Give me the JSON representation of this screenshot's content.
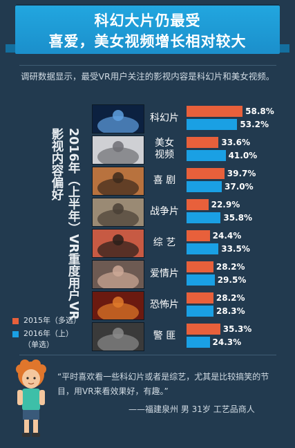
{
  "header": {
    "title_line1": "科幻大片仍最受",
    "title_line2": "喜爱，美女视频增长相对较大"
  },
  "intro": "调研数据显示，最受VR用户关注的影视内容是科幻片和美女视频。",
  "colors": {
    "orange": "#e8603b",
    "blue": "#1aa0e4",
    "background": "#223a4f",
    "title": "#1d9ad6"
  },
  "chart_data": {
    "type": "bar",
    "orientation": "horizontal",
    "title": "2016年（上半年）VR重度用户VR影视内容偏好",
    "categories": [
      "科幻片",
      "美女视频",
      "喜剧",
      "战争片",
      "综艺",
      "爱情片",
      "恐怖片",
      "警匪"
    ],
    "category_labels": [
      "科幻片",
      "美女\n视频",
      "喜 剧",
      "战争片",
      "综 艺",
      "爱情片",
      "恐怖片",
      "警 匪"
    ],
    "series": [
      {
        "name": "2015年（多选）",
        "values": [
          58.8,
          33.6,
          39.7,
          22.9,
          24.4,
          28.2,
          28.2,
          35.3
        ]
      },
      {
        "name": "2016年（上）（单选）",
        "values": [
          53.2,
          41.0,
          37.0,
          35.8,
          33.5,
          29.5,
          28.3,
          24.3
        ]
      }
    ],
    "value_labels": [
      [
        "58.8%",
        "33.6%",
        "39.7%",
        "22.9%",
        "24.4%",
        "28.2%",
        "28.2%",
        "35.3%"
      ],
      [
        "53.2%",
        "41.0%",
        "37.0%",
        "35.8%",
        "33.5%",
        "29.5%",
        "28.3%",
        "24.3%"
      ]
    ],
    "unit": "%",
    "legend": [
      {
        "label": "2015年（多选）",
        "color": "#e8603b"
      },
      {
        "label": "2016年（上）\n（单选）",
        "color": "#1aa0e4"
      }
    ],
    "legend_position": "bottom-left"
  },
  "testimonial": {
    "quote": "“平时喜欢看一些科幻片或者是综艺，尤其是比较搞笑的节目，用VR来看效果好，有趣。”",
    "attribution": "——福建泉州 男 31岁    工艺品商人",
    "avatar_icon": "cartoon-boy-avatar-icon"
  },
  "thumbnails": [
    {
      "icon": "scifi-robot-thumbnail-icon"
    },
    {
      "icon": "woman-portrait-thumbnail-icon"
    },
    {
      "icon": "comedy-duo-thumbnail-icon"
    },
    {
      "icon": "war-scene-thumbnail-icon"
    },
    {
      "icon": "variety-show-thumbnail-icon"
    },
    {
      "icon": "romance-couple-thumbnail-icon"
    },
    {
      "icon": "horror-face-thumbnail-icon"
    },
    {
      "icon": "police-group-thumbnail-icon"
    }
  ]
}
